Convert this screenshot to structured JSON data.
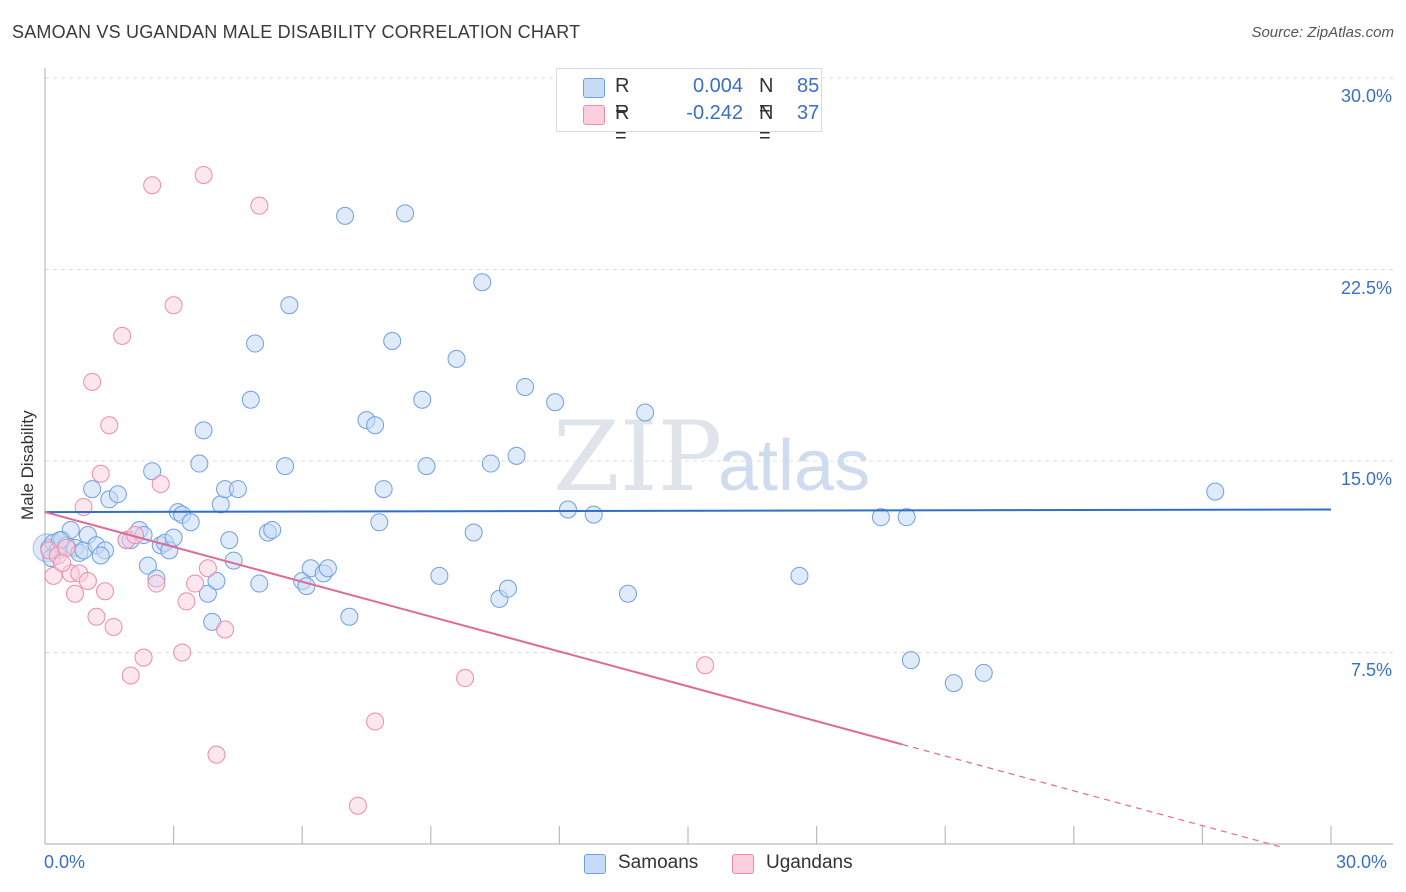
{
  "title": "SAMOAN VS UGANDAN MALE DISABILITY CORRELATION CHART",
  "source": "Source: ZipAtlas.com",
  "watermark": {
    "part1": "ZIP",
    "part2": "atlas"
  },
  "legend": {
    "rows": [
      {
        "r_label": "R =",
        "r_value": "0.004",
        "n_label": "N =",
        "n_value": "85",
        "color": "#6fa0e0"
      },
      {
        "r_label": "R =",
        "r_value": "-0.242",
        "n_label": "N =",
        "n_value": "37",
        "color": "#f08aac"
      }
    ]
  },
  "bottom_legend": [
    {
      "label": "Samoans",
      "color": "#6fa0e0"
    },
    {
      "label": "Ugandans",
      "color": "#f08aac"
    }
  ],
  "axis": {
    "x_min_label": "0.0%",
    "x_max_label": "30.0%",
    "y_ticks": [
      "30.0%",
      "22.5%",
      "15.0%",
      "7.5%"
    ],
    "y_title": "Male Disability"
  },
  "chart_data": {
    "type": "scatter",
    "title": "SAMOAN VS UGANDAN MALE DISABILITY CORRELATION CHART",
    "xlabel": "",
    "ylabel": "Male Disability",
    "xlim": [
      0,
      30
    ],
    "ylim": [
      0,
      31
    ],
    "y_gridlines": [
      7.5,
      15.0,
      22.5,
      30.0
    ],
    "grid": true,
    "legend_placement": "top-center",
    "series": [
      {
        "name": "Samoans",
        "color": "#6fa0e0",
        "trend": {
          "x": [
            0,
            30
          ],
          "y": [
            13.0,
            13.1
          ],
          "style": "solid"
        },
        "points": [
          [
            0.1,
            11.6
          ],
          [
            0.2,
            11.8
          ],
          [
            0.3,
            11.5
          ],
          [
            0.4,
            11.9
          ],
          [
            0.5,
            11.7
          ],
          [
            0.6,
            12.3
          ],
          [
            0.7,
            11.6
          ],
          [
            0.8,
            11.4
          ],
          [
            0.9,
            11.5
          ],
          [
            1.0,
            12.1
          ],
          [
            1.1,
            13.9
          ],
          [
            1.2,
            11.7
          ],
          [
            1.4,
            11.5
          ],
          [
            1.5,
            13.5
          ],
          [
            1.7,
            13.7
          ],
          [
            1.9,
            11.9
          ],
          [
            2.0,
            11.9
          ],
          [
            2.2,
            12.3
          ],
          [
            2.3,
            12.1
          ],
          [
            2.4,
            10.9
          ],
          [
            2.5,
            14.6
          ],
          [
            2.6,
            10.4
          ],
          [
            2.7,
            11.7
          ],
          [
            2.8,
            11.8
          ],
          [
            2.9,
            11.5
          ],
          [
            3.0,
            12.0
          ],
          [
            3.1,
            13.0
          ],
          [
            3.2,
            12.9
          ],
          [
            3.4,
            12.6
          ],
          [
            3.6,
            14.9
          ],
          [
            3.7,
            16.2
          ],
          [
            3.8,
            9.8
          ],
          [
            3.9,
            8.7
          ],
          [
            4.0,
            10.3
          ],
          [
            4.1,
            13.3
          ],
          [
            4.2,
            13.9
          ],
          [
            4.3,
            11.9
          ],
          [
            4.4,
            11.1
          ],
          [
            4.5,
            13.9
          ],
          [
            4.8,
            17.4
          ],
          [
            4.9,
            19.6
          ],
          [
            5.0,
            10.2
          ],
          [
            5.2,
            12.2
          ],
          [
            5.3,
            12.3
          ],
          [
            5.6,
            14.8
          ],
          [
            5.7,
            21.1
          ],
          [
            6.0,
            10.3
          ],
          [
            6.1,
            10.1
          ],
          [
            6.2,
            10.8
          ],
          [
            6.5,
            10.6
          ],
          [
            6.6,
            10.8
          ],
          [
            7.0,
            24.6
          ],
          [
            7.1,
            8.9
          ],
          [
            7.5,
            16.6
          ],
          [
            7.7,
            16.4
          ],
          [
            7.8,
            12.6
          ],
          [
            7.9,
            13.9
          ],
          [
            8.1,
            19.7
          ],
          [
            8.4,
            24.7
          ],
          [
            8.8,
            17.4
          ],
          [
            8.9,
            14.8
          ],
          [
            9.2,
            10.5
          ],
          [
            9.6,
            19.0
          ],
          [
            10.0,
            12.2
          ],
          [
            10.2,
            22.0
          ],
          [
            10.4,
            14.9
          ],
          [
            10.6,
            9.6
          ],
          [
            10.8,
            10.0
          ],
          [
            11.0,
            15.2
          ],
          [
            11.2,
            17.9
          ],
          [
            11.9,
            17.3
          ],
          [
            12.2,
            13.1
          ],
          [
            12.8,
            12.9
          ],
          [
            13.6,
            9.8
          ],
          [
            14.0,
            16.9
          ],
          [
            17.6,
            10.5
          ],
          [
            19.5,
            12.8
          ],
          [
            20.1,
            12.8
          ],
          [
            20.2,
            7.2
          ],
          [
            21.2,
            6.3
          ],
          [
            21.9,
            6.7
          ],
          [
            27.3,
            13.8
          ],
          [
            0.15,
            11.2
          ],
          [
            0.35,
            11.9
          ],
          [
            1.3,
            11.3
          ]
        ]
      },
      {
        "name": "Ugandans",
        "color": "#f08aac",
        "trend": {
          "x": [
            0,
            20.0
          ],
          "y": [
            13.0,
            3.9
          ],
          "style": "solid",
          "dashed_extension": {
            "x": [
              20.0,
              28.8
            ],
            "y": [
              3.9,
              -0.1
            ]
          }
        },
        "points": [
          [
            0.1,
            11.5
          ],
          [
            0.2,
            10.5
          ],
          [
            0.3,
            11.3
          ],
          [
            0.5,
            11.6
          ],
          [
            0.6,
            10.6
          ],
          [
            0.7,
            9.8
          ],
          [
            0.8,
            10.6
          ],
          [
            0.9,
            13.2
          ],
          [
            1.0,
            10.3
          ],
          [
            1.1,
            18.1
          ],
          [
            1.2,
            8.9
          ],
          [
            1.3,
            14.5
          ],
          [
            1.4,
            9.9
          ],
          [
            1.5,
            16.4
          ],
          [
            1.6,
            8.5
          ],
          [
            1.8,
            19.9
          ],
          [
            1.9,
            11.9
          ],
          [
            2.0,
            6.6
          ],
          [
            2.1,
            12.1
          ],
          [
            2.3,
            7.3
          ],
          [
            2.5,
            25.8
          ],
          [
            2.6,
            10.2
          ],
          [
            2.7,
            14.1
          ],
          [
            3.0,
            21.1
          ],
          [
            3.2,
            7.5
          ],
          [
            3.3,
            9.5
          ],
          [
            3.5,
            10.2
          ],
          [
            3.7,
            26.2
          ],
          [
            3.8,
            10.8
          ],
          [
            4.0,
            3.5
          ],
          [
            4.2,
            8.4
          ],
          [
            5.0,
            25.0
          ],
          [
            7.3,
            1.5
          ],
          [
            7.7,
            4.8
          ],
          [
            9.8,
            6.5
          ],
          [
            15.4,
            7.0
          ],
          [
            0.4,
            11.0
          ]
        ]
      }
    ]
  }
}
